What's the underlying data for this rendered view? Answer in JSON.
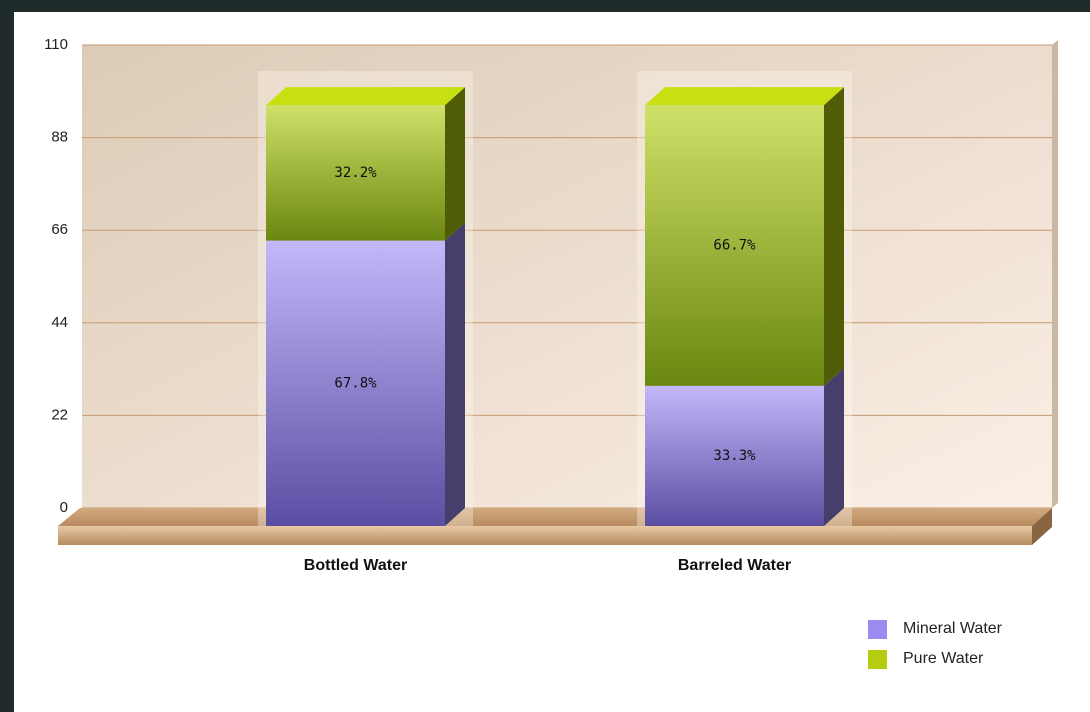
{
  "chart_data": {
    "type": "stacked_bar_3d",
    "categories": [
      "Bottled Water",
      "Barreled Water"
    ],
    "series": [
      {
        "name": "Mineral Water",
        "color": "#9b8cf0",
        "values": [
          67.8,
          33.3
        ],
        "value_labels": [
          "67.8%",
          "33.3%"
        ]
      },
      {
        "name": "Pure Water",
        "color": "#b5cc10",
        "values": [
          32.2,
          66.7
        ],
        "value_labels": [
          "32.2%",
          "66.7%"
        ]
      }
    ],
    "ylim": [
      0,
      110
    ],
    "yticks": [
      0,
      22,
      44,
      66,
      88,
      110
    ],
    "grid": true,
    "legend": "bottom-right"
  }
}
